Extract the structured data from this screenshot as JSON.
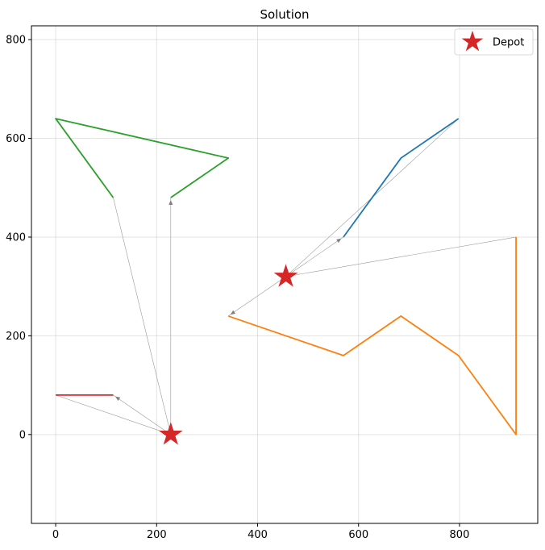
{
  "chart_data": {
    "type": "line",
    "title": "Solution",
    "xlabel": "",
    "ylabel": "",
    "xlim": [
      -48,
      955
    ],
    "ylim": [
      -180,
      828
    ],
    "xticks": [
      0,
      200,
      400,
      600,
      800
    ],
    "yticks": [
      0,
      200,
      400,
      600,
      800
    ],
    "grid": true,
    "legend": {
      "placement": "top-right",
      "entries": [
        {
          "label": "Depot",
          "marker": "star",
          "color": "#d62728"
        }
      ]
    },
    "depots": [
      {
        "x": 228,
        "y": 0
      },
      {
        "x": 456,
        "y": 320
      }
    ],
    "routes": [
      {
        "color": "#1f77b4",
        "points": [
          [
            570,
            400
          ],
          [
            684,
            560
          ],
          [
            798,
            640
          ]
        ]
      },
      {
        "color": "#ff7f0e",
        "points": [
          [
            342,
            240
          ],
          [
            570,
            160
          ],
          [
            684,
            240
          ],
          [
            798,
            160
          ],
          [
            912,
            0
          ],
          [
            912,
            400
          ]
        ]
      },
      {
        "color": "#2ca02c",
        "points": [
          [
            228,
            480
          ],
          [
            342,
            560
          ],
          [
            0,
            640
          ],
          [
            114,
            480
          ]
        ]
      },
      {
        "color": "#d62728",
        "points": [
          [
            114,
            80
          ],
          [
            0,
            80
          ]
        ]
      }
    ],
    "connectors": [
      {
        "from": [
          456,
          320
        ],
        "to": [
          570,
          400
        ],
        "arrow": true
      },
      {
        "from": [
          798,
          640
        ],
        "to": [
          456,
          320
        ],
        "arrow": false
      },
      {
        "from": [
          456,
          320
        ],
        "to": [
          342,
          240
        ],
        "arrow": true
      },
      {
        "from": [
          912,
          400
        ],
        "to": [
          456,
          320
        ],
        "arrow": false
      },
      {
        "from": [
          228,
          0
        ],
        "to": [
          228,
          480
        ],
        "arrow": true
      },
      {
        "from": [
          114,
          480
        ],
        "to": [
          228,
          0
        ],
        "arrow": false
      },
      {
        "from": [
          228,
          0
        ],
        "to": [
          114,
          80
        ],
        "arrow": true
      },
      {
        "from": [
          0,
          80
        ],
        "to": [
          228,
          0
        ],
        "arrow": false
      }
    ]
  }
}
